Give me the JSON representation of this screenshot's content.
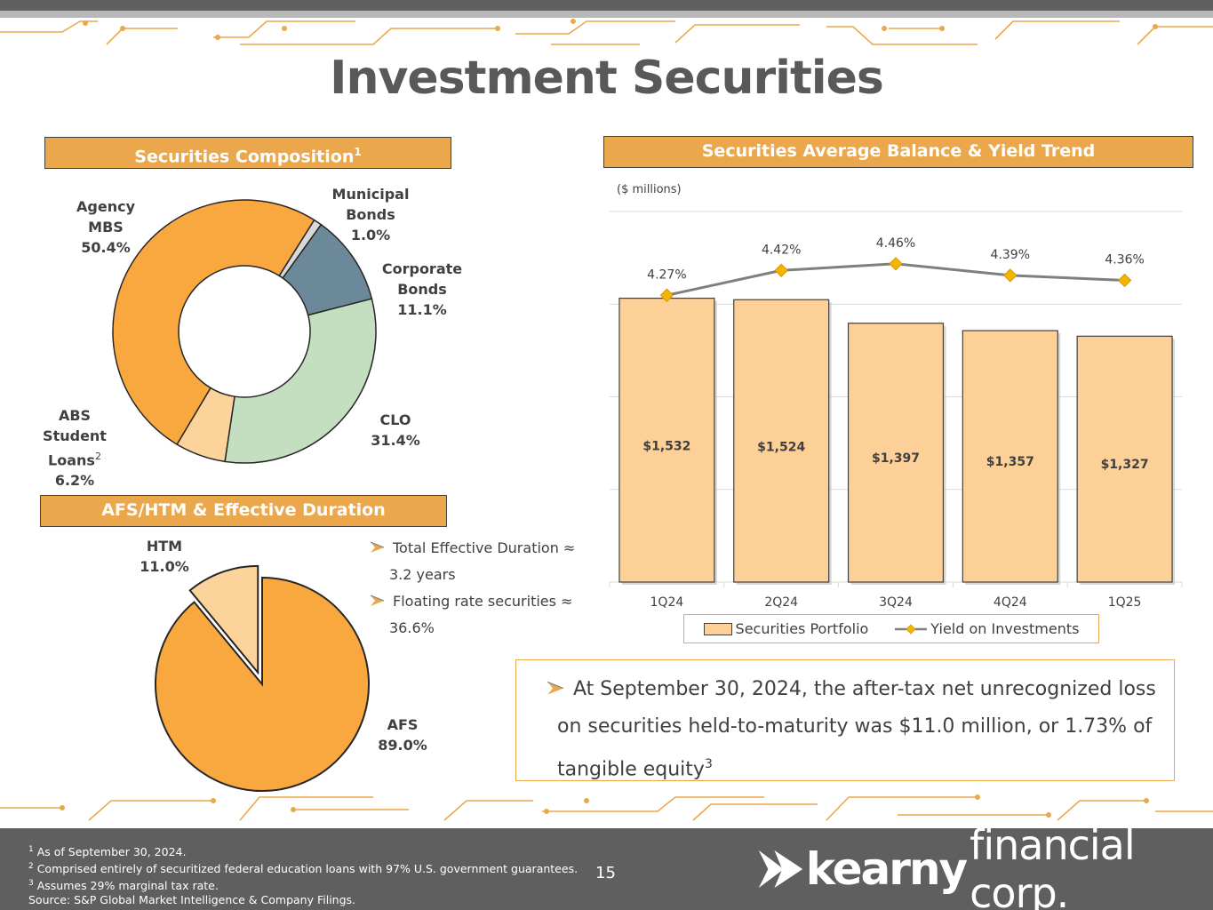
{
  "page": {
    "title": "Investment Securities",
    "page_number": "15"
  },
  "composition": {
    "header": "Securities Composition",
    "header_sup": "1",
    "labels": {
      "agency_mbs": [
        "Agency",
        "MBS",
        "50.4%"
      ],
      "municipal": [
        "Municipal",
        "Bonds",
        "1.0%"
      ],
      "corporate": [
        "Corporate",
        "Bonds",
        "11.1%"
      ],
      "clo": [
        "CLO",
        "31.4%"
      ],
      "abs": [
        "ABS Student",
        "Loans",
        "6.2%"
      ],
      "abs_sup": "2"
    }
  },
  "afs_htm": {
    "header": "AFS/HTM & Effective Duration",
    "labels": {
      "htm": [
        "HTM",
        "11.0%"
      ],
      "afs": [
        "AFS",
        "89.0%"
      ]
    },
    "bullets": [
      [
        "Total Effective Duration ≈",
        "3.2 years"
      ],
      [
        "Floating rate securities ≈",
        "36.6%"
      ]
    ]
  },
  "trend": {
    "header": "Securities Average Balance & Yield Trend",
    "units": "($ millions)",
    "legend_bar": "Securities Portfolio",
    "legend_line": "Yield on Investments"
  },
  "note": {
    "text": "At September 30, 2024, the after-tax net unrecognized loss on securities held-to-maturity was $11.0 million, or 1.73% of tangible equity",
    "sup": "3"
  },
  "footer": {
    "footnotes": [
      {
        "sup": "1",
        "text": " As of September 30, 2024."
      },
      {
        "sup": "2",
        "text": " Comprised entirely of securitized federal education loans with 97% U.S. government guarantees."
      },
      {
        "sup": "3",
        "text": " Assumes 29% marginal tax rate."
      },
      {
        "sup": "",
        "text": " Source: S&P Global Market Intelligence & Company Filings."
      }
    ],
    "logo_bold": "kearny",
    "logo_thin": "financial corp."
  },
  "colors": {
    "accent": "#eaa74c",
    "agency_mbs": "#f9a840",
    "municipal": "#d9d9d9",
    "corporate": "#6b8998",
    "clo": "#c3dfc0",
    "abs": "#fdd39c",
    "bar": "#fcd096",
    "line": "#7f7f7f",
    "marker": "#f5b400"
  },
  "chart_data": [
    {
      "type": "pie",
      "title": "Securities Composition",
      "categories": [
        "Agency MBS",
        "Municipal Bonds",
        "Corporate Bonds",
        "CLO",
        "ABS Student Loans"
      ],
      "values": [
        50.4,
        1.0,
        11.1,
        31.4,
        6.2
      ],
      "unit": "%",
      "donut": true
    },
    {
      "type": "pie",
      "title": "AFS/HTM & Effective Duration",
      "categories": [
        "HTM",
        "AFS"
      ],
      "values": [
        11.0,
        89.0
      ],
      "unit": "%",
      "exploded": "HTM"
    },
    {
      "type": "bar",
      "title": "Securities Average Balance & Yield Trend",
      "categories": [
        "1Q24",
        "2Q24",
        "3Q24",
        "4Q24",
        "1Q25"
      ],
      "series": [
        {
          "name": "Securities Portfolio",
          "type": "bar",
          "values": [
            1532,
            1524,
            1397,
            1357,
            1327
          ],
          "labels": [
            "$1,532",
            "$1,524",
            "$1,397",
            "$1,357",
            "$1,327"
          ]
        },
        {
          "name": "Yield on Investments",
          "type": "line",
          "values": [
            4.27,
            4.42,
            4.46,
            4.39,
            4.36
          ],
          "labels": [
            "4.27%",
            "4.42%",
            "4.46%",
            "4.39%",
            "4.36%"
          ]
        }
      ],
      "ylim": [
        0,
        2000
      ],
      "grid": true,
      "legend": "bottom"
    }
  ]
}
